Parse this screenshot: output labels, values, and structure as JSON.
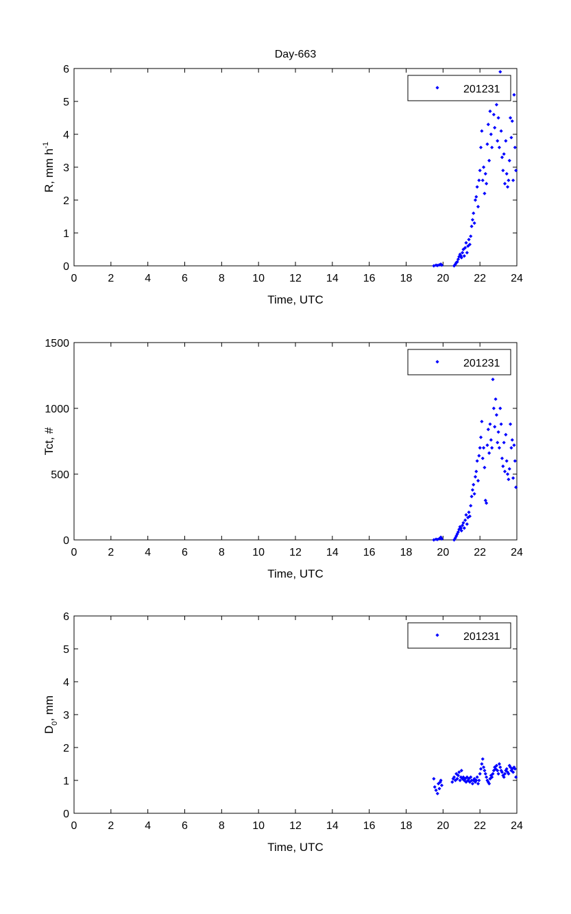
{
  "figure_title": "Day-663",
  "marker_color": "#0000ff",
  "chart_data": [
    {
      "type": "scatter",
      "title": "Day-663",
      "xlabel": "Time, UTC",
      "ylabel": "R, mm h",
      "ylabel_superscript": "-1",
      "xlim": [
        0,
        24
      ],
      "ylim": [
        0,
        6
      ],
      "xticks": [
        0,
        2,
        4,
        6,
        8,
        10,
        12,
        14,
        16,
        18,
        20,
        22,
        24
      ],
      "yticks": [
        0,
        1,
        2,
        3,
        4,
        5,
        6
      ],
      "grid": false,
      "legend": "top-right",
      "series": [
        {
          "name": "201231",
          "color": "#0000ff",
          "x": [
            19.5,
            19.62,
            19.7,
            19.8,
            19.88,
            19.93,
            20.6,
            20.67,
            20.72,
            20.77,
            20.82,
            20.87,
            20.92,
            20.97,
            21.0,
            21.05,
            21.1,
            21.15,
            21.2,
            21.25,
            21.3,
            21.35,
            21.4,
            21.45,
            21.5,
            21.55,
            21.6,
            21.65,
            21.7,
            21.75,
            21.8,
            21.85,
            21.9,
            21.95,
            22.0,
            22.05,
            22.1,
            22.15,
            22.2,
            22.25,
            22.3,
            22.35,
            22.4,
            22.45,
            22.5,
            22.55,
            22.6,
            22.65,
            22.7,
            22.75,
            22.8,
            22.85,
            22.9,
            22.95,
            23.0,
            23.05,
            23.1,
            23.15,
            23.2,
            23.25,
            23.3,
            23.35,
            23.4,
            23.45,
            23.5,
            23.55,
            23.6,
            23.65,
            23.7,
            23.75,
            23.8,
            23.85,
            23.9,
            23.95
          ],
          "y": [
            0.0,
            0.02,
            0.01,
            0.03,
            0.05,
            0.02,
            0.0,
            0.05,
            0.1,
            0.12,
            0.2,
            0.28,
            0.35,
            0.3,
            0.25,
            0.4,
            0.5,
            0.3,
            0.55,
            0.7,
            0.4,
            0.6,
            0.8,
            0.65,
            0.9,
            1.2,
            1.4,
            1.6,
            1.3,
            2.0,
            2.1,
            2.4,
            1.8,
            2.6,
            2.9,
            3.6,
            4.1,
            2.6,
            3.0,
            2.2,
            2.8,
            2.5,
            3.7,
            4.3,
            3.2,
            4.7,
            4.0,
            3.6,
            5.2,
            4.6,
            4.2,
            5.6,
            4.9,
            3.8,
            4.5,
            3.6,
            5.9,
            4.1,
            3.3,
            2.9,
            3.4,
            2.5,
            3.8,
            2.8,
            2.4,
            2.6,
            3.2,
            4.5,
            3.9,
            4.4,
            2.6,
            5.2,
            3.6,
            2.9
          ]
        }
      ]
    },
    {
      "type": "scatter",
      "xlabel": "Time, UTC",
      "ylabel": "Tct, #",
      "xlim": [
        0,
        24
      ],
      "ylim": [
        0,
        1500
      ],
      "xticks": [
        0,
        2,
        4,
        6,
        8,
        10,
        12,
        14,
        16,
        18,
        20,
        22,
        24
      ],
      "yticks": [
        0,
        500,
        1000,
        1500
      ],
      "grid": false,
      "legend": "top-right",
      "series": [
        {
          "name": "201231",
          "color": "#0000ff",
          "x": [
            19.5,
            19.62,
            19.7,
            19.8,
            19.88,
            19.93,
            20.6,
            20.67,
            20.72,
            20.77,
            20.82,
            20.87,
            20.92,
            20.97,
            21.0,
            21.05,
            21.1,
            21.15,
            21.2,
            21.25,
            21.3,
            21.35,
            21.4,
            21.45,
            21.5,
            21.55,
            21.6,
            21.65,
            21.7,
            21.75,
            21.8,
            21.85,
            21.9,
            21.95,
            22.0,
            22.05,
            22.1,
            22.15,
            22.2,
            22.25,
            22.3,
            22.35,
            22.4,
            22.45,
            22.5,
            22.55,
            22.6,
            22.65,
            22.7,
            22.75,
            22.8,
            22.85,
            22.9,
            22.95,
            23.0,
            23.05,
            23.1,
            23.15,
            23.2,
            23.25,
            23.3,
            23.35,
            23.4,
            23.45,
            23.5,
            23.55,
            23.6,
            23.65,
            23.7,
            23.75,
            23.8,
            23.85,
            23.9,
            23.95
          ],
          "y": [
            0,
            5,
            3,
            10,
            20,
            8,
            0,
            15,
            30,
            45,
            60,
            80,
            100,
            90,
            70,
            110,
            130,
            90,
            150,
            190,
            120,
            170,
            210,
            180,
            260,
            330,
            380,
            420,
            350,
            480,
            520,
            600,
            450,
            640,
            700,
            780,
            900,
            620,
            700,
            550,
            300,
            280,
            720,
            840,
            660,
            880,
            760,
            700,
            1220,
            1000,
            860,
            1070,
            950,
            740,
            820,
            700,
            1000,
            880,
            620,
            560,
            740,
            520,
            800,
            600,
            500,
            460,
            540,
            880,
            700,
            760,
            470,
            720,
            600,
            400
          ]
        }
      ]
    },
    {
      "type": "scatter",
      "xlabel": "Time, UTC",
      "ylabel": "D",
      "ylabel_subscript": "0",
      "ylabel_suffix": ", mm",
      "xlim": [
        0,
        24
      ],
      "ylim": [
        0,
        6
      ],
      "xticks": [
        0,
        2,
        4,
        6,
        8,
        10,
        12,
        14,
        16,
        18,
        20,
        22,
        24
      ],
      "yticks": [
        0,
        1,
        2,
        3,
        4,
        5,
        6
      ],
      "grid": false,
      "legend": "top-right",
      "series": [
        {
          "name": "201231",
          "color": "#0000ff",
          "x": [
            19.5,
            19.55,
            19.62,
            19.7,
            19.75,
            19.8,
            19.85,
            19.88,
            19.93,
            20.5,
            20.55,
            20.6,
            20.67,
            20.72,
            20.77,
            20.82,
            20.87,
            20.92,
            20.97,
            21.0,
            21.05,
            21.1,
            21.15,
            21.2,
            21.25,
            21.3,
            21.35,
            21.4,
            21.45,
            21.5,
            21.55,
            21.6,
            21.65,
            21.7,
            21.75,
            21.8,
            21.85,
            21.9,
            21.95,
            22.0,
            22.05,
            22.1,
            22.15,
            22.2,
            22.25,
            22.3,
            22.35,
            22.4,
            22.45,
            22.5,
            22.55,
            22.6,
            22.65,
            22.7,
            22.75,
            22.8,
            22.85,
            22.9,
            22.95,
            23.0,
            23.05,
            23.1,
            23.15,
            23.2,
            23.25,
            23.3,
            23.35,
            23.4,
            23.45,
            23.5,
            23.55,
            23.6,
            23.65,
            23.7,
            23.75,
            23.8,
            23.85,
            23.9,
            23.95
          ],
          "y": [
            1.05,
            0.8,
            0.7,
            0.6,
            0.9,
            0.75,
            0.95,
            1.0,
            0.85,
            0.95,
            1.05,
            1.1,
            1.0,
            1.2,
            1.05,
            1.15,
            1.25,
            1.0,
            1.1,
            1.3,
            1.05,
            1.1,
            1.0,
            1.05,
            0.95,
            1.1,
            1.0,
            1.05,
            0.95,
            1.1,
            1.0,
            0.9,
            1.0,
            1.05,
            0.95,
            1.0,
            1.1,
            0.9,
            1.0,
            1.2,
            1.35,
            1.5,
            1.65,
            1.4,
            1.3,
            1.2,
            1.1,
            1.0,
            0.95,
            0.9,
            1.05,
            1.15,
            1.1,
            1.2,
            1.3,
            1.4,
            1.35,
            1.45,
            1.3,
            1.2,
            1.5,
            1.4,
            1.3,
            1.25,
            1.15,
            1.1,
            1.2,
            1.3,
            1.35,
            1.25,
            1.2,
            1.45,
            1.4,
            1.3,
            1.35,
            1.25,
            1.4,
            1.35,
            1.1
          ]
        }
      ]
    }
  ]
}
